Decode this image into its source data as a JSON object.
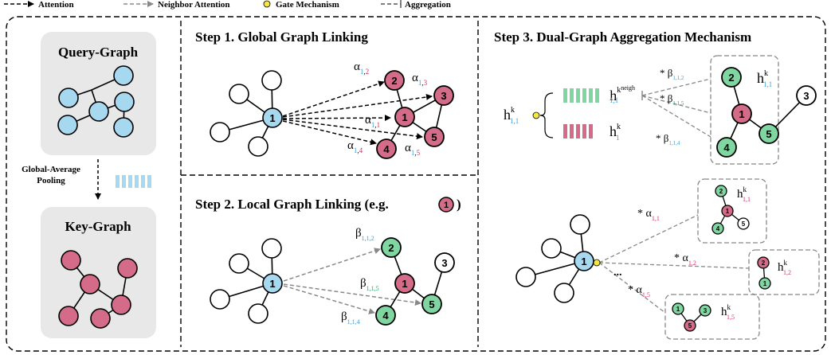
{
  "colors": {
    "query_node": "#a6d8f0",
    "key_node": "#d46b88",
    "neighbor_node": "#7fd6a0",
    "panel_bg": "#e8e8e8",
    "gate": "#f5e642",
    "pooling_bar": "#a6d8f0",
    "hneigh_bar": "#7fd6a0",
    "h_bar": "#d46b88",
    "sub_blue": "#3aa0d8",
    "sub_red": "#d03060",
    "sub_green": "#2aa05a"
  },
  "legend": {
    "attention": "Attention",
    "neighbor_attention": "Neighbor Attention",
    "gate": "Gate Mechanism",
    "aggregation": "Aggregation"
  },
  "left_panel": {
    "query_title": "Query-Graph",
    "pool_line1": "Global-Average",
    "pool_line2": "Pooling",
    "key_title": "Key-Graph"
  },
  "step1": {
    "title": "Step 1. Global Graph Linking",
    "center_node": "1",
    "nodes": [
      "2",
      "3",
      "1",
      "5",
      "4"
    ],
    "alphas": [
      "α",
      "α",
      "α",
      "α",
      "α"
    ],
    "alpha_sub1": [
      "1",
      "1",
      "1",
      "1",
      "1"
    ],
    "alpha_sub2": [
      "2",
      "3",
      "1",
      "4",
      "5"
    ]
  },
  "step2": {
    "title_prefix": "Step 2. Local Graph Linking (e.g.",
    "title_node": "1",
    "title_suffix": ")",
    "center_node": "1",
    "nodes": [
      "2",
      "3",
      "1",
      "5",
      "4"
    ],
    "betas": [
      "β",
      "β",
      "β"
    ],
    "beta_sub": [
      "1,1,2",
      "1,1,5",
      "1,1,4"
    ]
  },
  "step3": {
    "title": "Step 3. Dual-Graph Aggregation Mechanism",
    "h_input": "h",
    "h_input_sup": "k",
    "h_input_sub": "1,1",
    "h_neigh": "h",
    "h_neigh_sup": "k",
    "h_neigh_sup2": "neigh",
    "h_neigh_sub": "1,1",
    "h_plain": "h",
    "h_plain_sup": "k",
    "h_plain_sub": "1",
    "beta_labels": [
      "* β",
      "* β",
      "* β"
    ],
    "beta_subs": [
      "1,1,2",
      "1,1,5",
      "1,1,4"
    ],
    "box1_nodes": [
      "2",
      "1",
      "5",
      "4",
      "3"
    ],
    "box1_h": "h",
    "box1_sup": "k",
    "box1_sub": "1,1",
    "alpha_labels": [
      "* α",
      "* α",
      "* α"
    ],
    "alpha_subs": [
      "1,1",
      "1,2",
      "1,5"
    ],
    "ellipsis": "...",
    "boxA_nodes": [
      "2",
      "1",
      "4",
      "5"
    ],
    "boxA_h": "h",
    "boxA_sup": "k",
    "boxA_sub": "1,1",
    "boxB_nodes": [
      "2",
      "1"
    ],
    "boxB_h": "h",
    "boxB_sup": "k",
    "boxB_sub": "1,2",
    "boxC_nodes": [
      "1",
      "3",
      "5"
    ],
    "boxC_h": "h",
    "boxC_sup": "k",
    "boxC_sub": "1,5",
    "center_node": "1"
  }
}
